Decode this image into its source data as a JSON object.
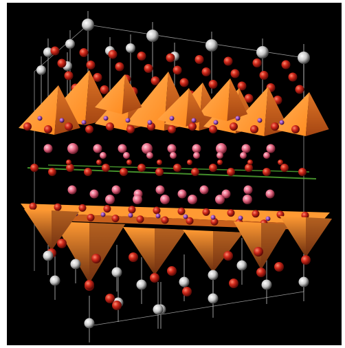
{
  "figure": {
    "kind": "crystal-structure-render",
    "background_color": "#000000",
    "frame_color": "#ffffff",
    "materials": {
      "polyhedron_top": "#ff9a33",
      "polyhedron_side": "#d9661a",
      "polyhedron_shadow": "#7a3412",
      "oxygen_atom": "#c8281c",
      "large_cation": "#f07890",
      "small_cation": "#8a3fa0",
      "metal_atom": "#d8d8d8",
      "plane_line": "#5bbf3a",
      "bond_line": "#cfcfcf"
    },
    "layers": [
      {
        "name": "upper-octahedral-layer",
        "polyhedron": "pyramid-up"
      },
      {
        "name": "cation-layer-upper",
        "atom": "large_cation"
      },
      {
        "name": "green-plane-layer",
        "atom": "oxygen_atom"
      },
      {
        "name": "cation-layer-lower",
        "atom": "large_cation"
      },
      {
        "name": "lower-octahedral-layer",
        "polyhedron": "pyramid-down"
      },
      {
        "name": "metal-column-layer",
        "atom": "metal_atom"
      }
    ]
  }
}
